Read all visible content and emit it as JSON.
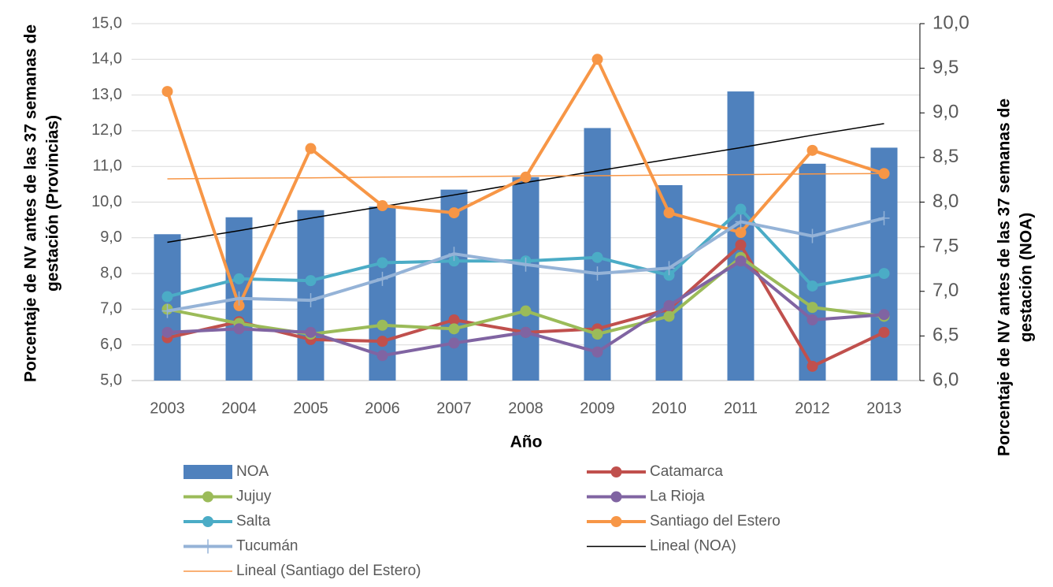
{
  "chart_data": {
    "type": "bar-line",
    "x_label": "Año",
    "y_label": [
      "Porcentaje de NV antes de las 37 semanas de",
      "gestación (Provincias)"
    ],
    "y2_label": [
      "Porcentaje de NV antes de las 37 semanas de",
      "gestación (NOA)"
    ],
    "categories": [
      "2003",
      "2004",
      "2005",
      "2006",
      "2007",
      "2008",
      "2009",
      "2010",
      "2011",
      "2012",
      "2013"
    ],
    "ylim": [
      5,
      15
    ],
    "yticks": [
      {
        "value": 5,
        "label": "5,0"
      },
      {
        "value": 6,
        "label": "6,0"
      },
      {
        "value": 7,
        "label": "7,0"
      },
      {
        "value": 8,
        "label": "8,0"
      },
      {
        "value": 9,
        "label": "9,0"
      },
      {
        "value": 10,
        "label": "10,0"
      },
      {
        "value": 11,
        "label": "11,0"
      },
      {
        "value": 12,
        "label": "12,0"
      },
      {
        "value": 13,
        "label": "13,0"
      },
      {
        "value": 14,
        "label": "14,0"
      },
      {
        "value": 15,
        "label": "15,0"
      }
    ],
    "y2lim": [
      6,
      10
    ],
    "y2ticks": [
      {
        "value": 6,
        "label": "6,0"
      },
      {
        "value": 6.5,
        "label": "6,5"
      },
      {
        "value": 7,
        "label": "7,0"
      },
      {
        "value": 7.5,
        "label": "7,5"
      },
      {
        "value": 8,
        "label": "8,0"
      },
      {
        "value": 8.5,
        "label": "8,5"
      },
      {
        "value": 9,
        "label": "9,0"
      },
      {
        "value": 9.5,
        "label": "9,5"
      },
      {
        "value": 10,
        "label": "10,0"
      }
    ],
    "grid": true,
    "series": [
      {
        "name": "NOA",
        "type": "bar",
        "axis": "y2",
        "color": "#4f81bd",
        "values": [
          7.64,
          7.83,
          7.91,
          7.95,
          8.14,
          8.28,
          8.83,
          8.19,
          9.24,
          8.43,
          8.61
        ]
      },
      {
        "name": "Catamarca",
        "type": "line",
        "marker": "circle",
        "color": "#c0504d",
        "values": [
          6.2,
          6.65,
          6.15,
          6.1,
          6.7,
          6.35,
          6.45,
          7.0,
          8.8,
          5.4,
          6.35
        ]
      },
      {
        "name": "Jujuy",
        "type": "line",
        "marker": "circle",
        "color": "#9bbb59",
        "values": [
          7.0,
          6.6,
          6.3,
          6.55,
          6.45,
          6.95,
          6.3,
          6.8,
          8.45,
          7.05,
          6.8
        ]
      },
      {
        "name": "La Rioja",
        "type": "line",
        "marker": "circle",
        "color": "#8064a2",
        "values": [
          6.35,
          6.45,
          6.35,
          5.7,
          6.05,
          6.35,
          5.8,
          7.1,
          8.35,
          6.7,
          6.85
        ]
      },
      {
        "name": "Salta",
        "type": "line",
        "marker": "circle",
        "color": "#4bacc6",
        "values": [
          7.35,
          7.85,
          7.8,
          8.3,
          8.35,
          8.35,
          8.45,
          7.95,
          9.8,
          7.65,
          8.0
        ]
      },
      {
        "name": "Santiago del Estero",
        "type": "line",
        "marker": "circle",
        "color": "#f79646",
        "values": [
          13.1,
          7.1,
          11.5,
          9.9,
          9.7,
          10.7,
          14.0,
          9.7,
          9.15,
          11.45,
          10.8
        ]
      },
      {
        "name": "Tucumán",
        "type": "line",
        "marker": "plus",
        "color": "#95b3d7",
        "values": [
          6.95,
          7.3,
          7.25,
          7.85,
          8.55,
          8.25,
          8.0,
          8.15,
          9.45,
          9.05,
          9.55
        ]
      },
      {
        "name": "Lineal (NOA)",
        "type": "trend",
        "axis": "y2",
        "color": "#000000",
        "values": [
          7.55,
          7.68,
          7.82,
          7.95,
          8.08,
          8.22,
          8.35,
          8.48,
          8.61,
          8.75,
          8.88
        ]
      },
      {
        "name": "Lineal (Santiago del Estero)",
        "type": "trend",
        "color": "#f79646",
        "values": [
          10.65,
          10.67,
          10.68,
          10.7,
          10.71,
          10.73,
          10.74,
          10.76,
          10.77,
          10.79,
          10.8
        ]
      }
    ]
  }
}
